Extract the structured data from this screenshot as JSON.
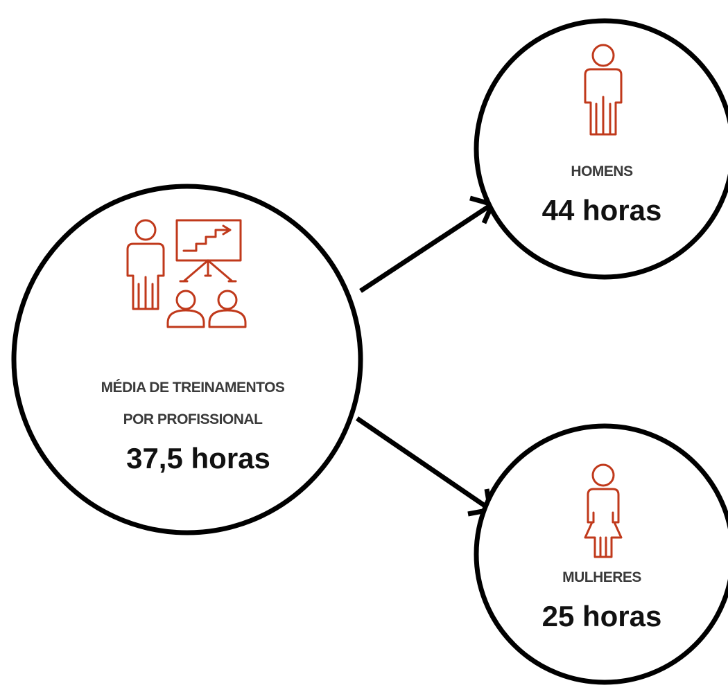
{
  "main": {
    "label": [
      "MÉDIA DE TREINAMENTOS",
      "POR PROFISSIONAL"
    ],
    "value": "37,5 horas"
  },
  "men": {
    "label": "HOMENS",
    "value": "44 horas"
  },
  "women": {
    "label": "MULHERES",
    "value": "25 horas"
  }
}
